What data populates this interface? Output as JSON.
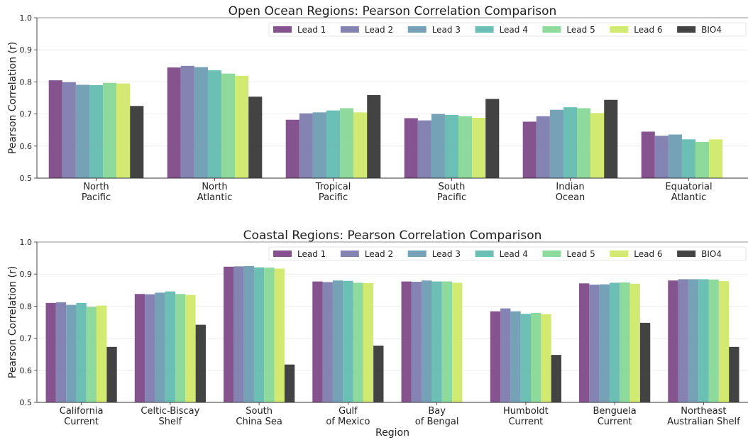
{
  "chart_data": [
    {
      "type": "bar",
      "title": "Open Ocean Regions: Pearson Correlation Comparison",
      "xlabel": "",
      "ylabel": "Pearson Correlation (r)",
      "ylim": [
        0.5,
        1.0
      ],
      "yticks": [
        "0.5",
        "0.6",
        "0.7",
        "0.8",
        "0.9",
        "1.0"
      ],
      "grid": "horizontal",
      "legend_position": "top-right",
      "categories": [
        [
          "North",
          "Pacific"
        ],
        [
          "North",
          "Atlantic"
        ],
        [
          "Tropical",
          "Pacific"
        ],
        [
          "South",
          "Pacific"
        ],
        [
          "Indian",
          "Ocean"
        ],
        [
          "Equatorial",
          "Atlantic"
        ]
      ],
      "series": [
        {
          "name": "Lead 1",
          "color": "#7b4585",
          "values": [
            0.805,
            0.845,
            0.682,
            0.687,
            0.676,
            0.645
          ]
        },
        {
          "name": "Lead 2",
          "color": "#7a78aa",
          "values": [
            0.799,
            0.85,
            0.702,
            0.68,
            0.693,
            0.632
          ]
        },
        {
          "name": "Lead 3",
          "color": "#6a9ab2",
          "values": [
            0.791,
            0.846,
            0.705,
            0.7,
            0.713,
            0.636
          ]
        },
        {
          "name": "Lead 4",
          "color": "#5fbaaf",
          "values": [
            0.79,
            0.836,
            0.711,
            0.697,
            0.721,
            0.621
          ]
        },
        {
          "name": "Lead 5",
          "color": "#84d694",
          "values": [
            0.797,
            0.826,
            0.718,
            0.693,
            0.718,
            0.613
          ]
        },
        {
          "name": "Lead 6",
          "color": "#cfe866",
          "values": [
            0.795,
            0.819,
            0.705,
            0.688,
            0.703,
            0.621
          ]
        },
        {
          "name": "BIO4",
          "color": "#333333",
          "values": [
            0.725,
            0.754,
            0.759,
            0.747,
            0.744,
            null
          ]
        }
      ]
    },
    {
      "type": "bar",
      "title": "Coastal Regions: Pearson Correlation Comparison",
      "xlabel": "Region",
      "ylabel": "Pearson Correlation (r)",
      "ylim": [
        0.5,
        1.0
      ],
      "yticks": [
        "0.5",
        "0.6",
        "0.7",
        "0.8",
        "0.9",
        "1.0"
      ],
      "grid": "horizontal",
      "legend_position": "top-right",
      "categories": [
        [
          "California",
          "Current"
        ],
        [
          "Celtic-Biscay",
          "Shelf"
        ],
        [
          "South",
          "China Sea"
        ],
        [
          "Gulf",
          "of Mexico"
        ],
        [
          "Bay",
          "of Bengal"
        ],
        [
          "Humboldt",
          "Current"
        ],
        [
          "Benguela",
          "Current"
        ],
        [
          "Northeast",
          "Australian Shelf"
        ]
      ],
      "series": [
        {
          "name": "Lead 1",
          "color": "#7b4585",
          "values": [
            0.81,
            0.838,
            0.923,
            0.877,
            0.877,
            0.784,
            0.871,
            0.88
          ]
        },
        {
          "name": "Lead 2",
          "color": "#7a78aa",
          "values": [
            0.812,
            0.837,
            0.924,
            0.875,
            0.876,
            0.793,
            0.867,
            0.884
          ]
        },
        {
          "name": "Lead 3",
          "color": "#6a9ab2",
          "values": [
            0.804,
            0.842,
            0.925,
            0.88,
            0.88,
            0.784,
            0.868,
            0.884
          ]
        },
        {
          "name": "Lead 4",
          "color": "#5fbaaf",
          "values": [
            0.81,
            0.846,
            0.921,
            0.879,
            0.877,
            0.776,
            0.873,
            0.884
          ]
        },
        {
          "name": "Lead 5",
          "color": "#84d694",
          "values": [
            0.798,
            0.838,
            0.92,
            0.873,
            0.877,
            0.779,
            0.874,
            0.883
          ]
        },
        {
          "name": "Lead 6",
          "color": "#cfe866",
          "values": [
            0.802,
            0.835,
            0.917,
            0.872,
            0.873,
            0.775,
            0.87,
            0.878
          ]
        },
        {
          "name": "BIO4",
          "color": "#333333",
          "values": [
            0.673,
            0.742,
            0.618,
            0.677,
            null,
            0.648,
            0.748,
            0.673
          ]
        }
      ]
    }
  ]
}
